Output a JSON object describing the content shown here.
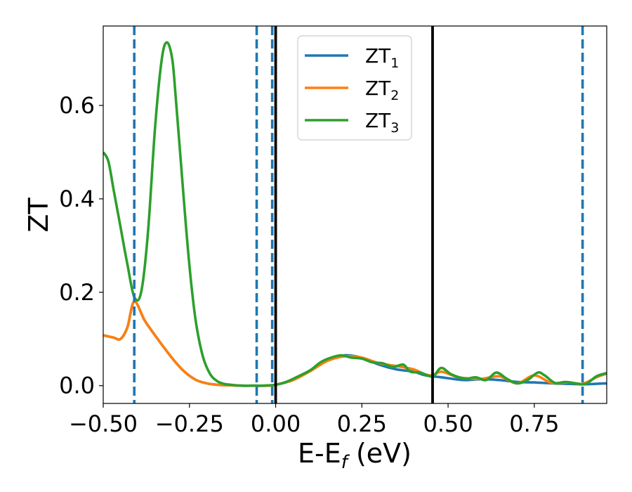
{
  "chart_data": {
    "type": "line",
    "xlabel": "E-E",
    "xlabel_sub": "f",
    "xlabel_unit": " (eV)",
    "ylabel": "ZT",
    "xlim": [
      -0.5,
      0.96
    ],
    "ylim": [
      -0.038,
      0.77
    ],
    "x_ticks": [
      -0.5,
      -0.25,
      0.0,
      0.25,
      0.5,
      0.75
    ],
    "x_tick_labels": [
      "−0.50",
      "−0.25",
      "0.00",
      "0.25",
      "0.50",
      "0.75"
    ],
    "y_ticks": [
      0.0,
      0.2,
      0.4,
      0.6
    ],
    "y_tick_labels": [
      "0.0",
      "0.2",
      "0.4",
      "0.6"
    ],
    "grid": false,
    "legend_position": "top-center",
    "vertical_lines_dashed": [
      -0.41,
      -0.055,
      -0.01,
      0.89
    ],
    "vertical_lines_solid": [
      0.0,
      0.455
    ],
    "vline_dashed_color": "#1f77b4",
    "vline_solid_color": "#000000",
    "series": [
      {
        "name": "ZT",
        "sub": "1",
        "color": "#1f77b4",
        "x": [
          -0.5,
          -0.47,
          -0.45,
          -0.43,
          -0.41,
          -0.38,
          -0.35,
          -0.32,
          -0.29,
          -0.26,
          -0.23,
          -0.2,
          -0.17,
          -0.14,
          -0.1,
          -0.06,
          -0.02,
          0.0,
          0.05,
          0.1,
          0.15,
          0.2,
          0.25,
          0.3,
          0.35,
          0.4,
          0.43,
          0.455,
          0.48,
          0.52,
          0.55,
          0.6,
          0.65,
          0.7,
          0.75,
          0.8,
          0.85,
          0.89,
          0.93,
          0.96
        ],
        "y": [
          0.108,
          0.103,
          0.1,
          0.125,
          0.18,
          0.14,
          0.108,
          0.078,
          0.05,
          0.027,
          0.012,
          0.005,
          0.002,
          0.001,
          0.0,
          0.0,
          0.0,
          0.002,
          0.012,
          0.032,
          0.055,
          0.065,
          0.06,
          0.045,
          0.035,
          0.03,
          0.023,
          0.02,
          0.018,
          0.014,
          0.012,
          0.014,
          0.012,
          0.008,
          0.007,
          0.005,
          0.004,
          0.003,
          0.004,
          0.005
        ]
      },
      {
        "name": "ZT",
        "sub": "2",
        "color": "#ff7f0e",
        "x": [
          -0.5,
          -0.47,
          -0.45,
          -0.43,
          -0.41,
          -0.38,
          -0.35,
          -0.32,
          -0.29,
          -0.26,
          -0.23,
          -0.2,
          -0.17,
          -0.14,
          -0.1,
          -0.06,
          -0.02,
          0.0,
          0.05,
          0.1,
          0.15,
          0.2,
          0.25,
          0.3,
          0.35,
          0.4,
          0.43,
          0.455,
          0.48,
          0.52,
          0.55,
          0.6,
          0.65,
          0.7,
          0.75,
          0.8,
          0.85,
          0.89,
          0.93,
          0.96
        ],
        "y": [
          0.108,
          0.103,
          0.1,
          0.125,
          0.18,
          0.14,
          0.108,
          0.078,
          0.05,
          0.027,
          0.012,
          0.005,
          0.002,
          0.001,
          0.0,
          0.0,
          0.0,
          0.002,
          0.012,
          0.031,
          0.053,
          0.063,
          0.06,
          0.048,
          0.042,
          0.035,
          0.025,
          0.022,
          0.03,
          0.02,
          0.016,
          0.015,
          0.02,
          0.005,
          0.022,
          0.006,
          0.007,
          0.004,
          0.018,
          0.026
        ]
      },
      {
        "name": "ZT",
        "sub": "3",
        "color": "#2ca02c",
        "x": [
          -0.5,
          -0.485,
          -0.47,
          -0.45,
          -0.43,
          -0.41,
          -0.39,
          -0.37,
          -0.35,
          -0.33,
          -0.315,
          -0.3,
          -0.29,
          -0.275,
          -0.26,
          -0.245,
          -0.23,
          -0.21,
          -0.19,
          -0.17,
          -0.15,
          -0.13,
          -0.1,
          -0.07,
          -0.04,
          0.0,
          0.03,
          0.06,
          0.1,
          0.13,
          0.16,
          0.19,
          0.22,
          0.25,
          0.28,
          0.31,
          0.34,
          0.37,
          0.39,
          0.42,
          0.455,
          0.48,
          0.51,
          0.55,
          0.58,
          0.61,
          0.64,
          0.67,
          0.7,
          0.73,
          0.76,
          0.78,
          0.81,
          0.84,
          0.87,
          0.9,
          0.93,
          0.96
        ],
        "y": [
          0.5,
          0.48,
          0.42,
          0.34,
          0.26,
          0.19,
          0.2,
          0.33,
          0.55,
          0.7,
          0.735,
          0.7,
          0.62,
          0.48,
          0.34,
          0.22,
          0.13,
          0.06,
          0.025,
          0.01,
          0.004,
          0.002,
          0.0,
          0.0,
          0.0,
          0.002,
          0.008,
          0.018,
          0.033,
          0.05,
          0.06,
          0.065,
          0.06,
          0.058,
          0.05,
          0.048,
          0.04,
          0.045,
          0.03,
          0.028,
          0.02,
          0.038,
          0.024,
          0.015,
          0.018,
          0.012,
          0.028,
          0.015,
          0.005,
          0.012,
          0.028,
          0.022,
          0.006,
          0.008,
          0.005,
          0.004,
          0.02,
          0.027
        ]
      }
    ]
  }
}
